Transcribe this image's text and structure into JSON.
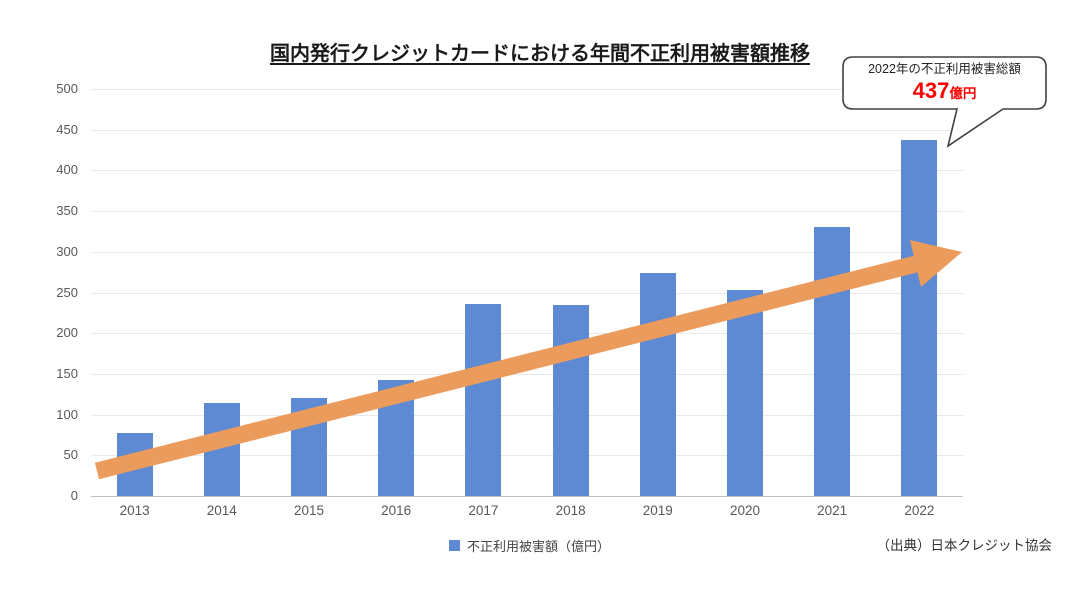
{
  "title": "国内発行クレジットカードにおける年間不正利用被害額推移",
  "callout": {
    "heading": "2022年の不正利用被害総額",
    "value": "437",
    "unit": "億円"
  },
  "source": "（出典）日本クレジット協会",
  "colors": {
    "bar": "#5E8AD4",
    "arrow": "#EB9B5C",
    "callout_value": "#FF0000",
    "callout_border": "#404040",
    "axis_label": "#595959",
    "gridline": "#E8E8E8",
    "axis_line": "#BFBFBF"
  },
  "chart_data": {
    "type": "bar",
    "title": "国内発行クレジットカードにおける年間不正利用被害額推移",
    "categories": [
      "2013",
      "2014",
      "2015",
      "2016",
      "2017",
      "2018",
      "2019",
      "2020",
      "2021",
      "2022"
    ],
    "series": [
      {
        "name": "不正利用被害額（億円）",
        "values": [
          78,
          114,
          121,
          142,
          236,
          235,
          274,
          253,
          330,
          437
        ]
      }
    ],
    "xlabel": "",
    "ylabel": "",
    "ylim": [
      0,
      500
    ],
    "ytick_step": 50,
    "yticks": [
      0,
      50,
      100,
      150,
      200,
      250,
      300,
      350,
      400,
      450,
      500
    ],
    "grid": true,
    "legend_position": "bottom-center",
    "annotations": [
      {
        "type": "callout",
        "text": "2022年の不正利用被害総額 437億円",
        "target_category": "2022"
      },
      {
        "type": "trend-arrow",
        "direction": "up-right",
        "color": "#EB9B5C"
      }
    ]
  }
}
